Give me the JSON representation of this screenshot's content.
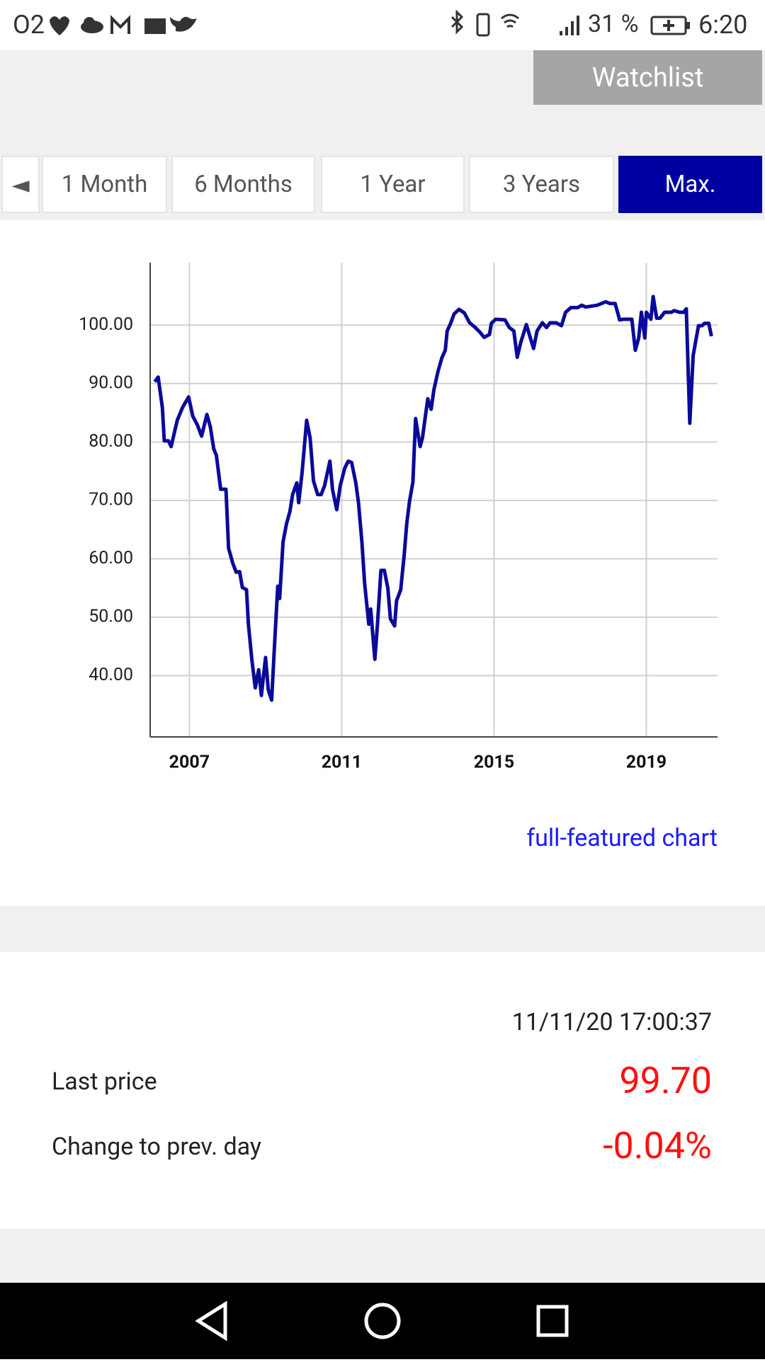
{
  "status_bar": {
    "carrier": "O2",
    "battery": "31 %",
    "time": "6:20"
  },
  "watchlist_button": "Watchlist",
  "tabs": [
    "◄",
    "1 Month",
    "6 Months",
    "1 Year",
    "3 Years",
    "Max."
  ],
  "chart_data": {
    "type": "line",
    "color": "#0a0a9a",
    "grid": true,
    "xlim": [
      2005.97,
      2020.87
    ],
    "ylim": [
      29.5,
      110.7
    ],
    "xticks": [
      2007,
      2011,
      2015,
      2019
    ],
    "yticks": [
      {
        "value": 40,
        "label": "40.00"
      },
      {
        "value": 50,
        "label": "50.00"
      },
      {
        "value": 60,
        "label": "60.00"
      },
      {
        "value": 70,
        "label": "70.00"
      },
      {
        "value": 80,
        "label": "80.00"
      },
      {
        "value": 90,
        "label": "90.00"
      },
      {
        "value": 100,
        "label": "100.00"
      }
    ],
    "x": [
      2006.09,
      2006.18,
      2006.29,
      2006.34,
      2006.45,
      2006.52,
      2006.68,
      2006.82,
      2006.98,
      2007.09,
      2007.21,
      2007.32,
      2007.46,
      2007.55,
      2007.64,
      2007.71,
      2007.82,
      2007.96,
      2008.03,
      2008.14,
      2008.23,
      2008.32,
      2008.39,
      2008.5,
      2008.55,
      2008.64,
      2008.73,
      2008.82,
      2008.89,
      2009.0,
      2009.07,
      2009.16,
      2009.23,
      2009.32,
      2009.37,
      2009.46,
      2009.55,
      2009.64,
      2009.71,
      2009.82,
      2009.87,
      2009.96,
      2010.08,
      2010.17,
      2010.26,
      2010.37,
      2010.46,
      2010.55,
      2010.69,
      2010.76,
      2010.87,
      2010.96,
      2011.08,
      2011.17,
      2011.26,
      2011.37,
      2011.44,
      2011.53,
      2011.6,
      2011.71,
      2011.76,
      2011.87,
      2011.94,
      2012.03,
      2012.12,
      2012.21,
      2012.28,
      2012.39,
      2012.44,
      2012.55,
      2012.64,
      2012.71,
      2012.78,
      2012.87,
      2012.94,
      2013.06,
      2013.12,
      2013.26,
      2013.35,
      2013.42,
      2013.53,
      2013.63,
      2013.72,
      2013.77,
      2013.86,
      2013.95,
      2014.08,
      2014.22,
      2014.36,
      2014.49,
      2014.63,
      2014.74,
      2014.88,
      2014.93,
      2015.04,
      2015.29,
      2015.4,
      2015.52,
      2015.61,
      2015.7,
      2015.85,
      2015.94,
      2016.04,
      2016.13,
      2016.27,
      2016.38,
      2016.47,
      2016.63,
      2016.77,
      2016.88,
      2017.02,
      2017.2,
      2017.3,
      2017.41,
      2017.71,
      2017.93,
      2018.05,
      2018.18,
      2018.3,
      2018.39,
      2018.62,
      2018.71,
      2018.8,
      2018.87,
      2018.96,
      2019.0,
      2019.12,
      2019.18,
      2019.27,
      2019.36,
      2019.48,
      2019.66,
      2019.73,
      2019.87,
      2019.98,
      2020.05,
      2020.14,
      2020.23,
      2020.37,
      2020.46,
      2020.53,
      2020.64,
      2020.71
    ],
    "values": [
      90.3,
      91.1,
      85.9,
      80.2,
      80.2,
      79.2,
      83.7,
      85.9,
      87.7,
      84.4,
      82.9,
      81.0,
      84.7,
      82.6,
      78.8,
      77.7,
      71.9,
      71.9,
      61.8,
      59.2,
      57.7,
      57.8,
      55.1,
      54.7,
      48.8,
      42.8,
      37.9,
      41.0,
      36.6,
      43.1,
      37.6,
      35.8,
      44.6,
      55.3,
      53.2,
      62.9,
      66.0,
      68.1,
      71.0,
      73.0,
      69.6,
      74.8,
      83.7,
      80.7,
      73.3,
      71.0,
      71.0,
      72.5,
      76.7,
      71.8,
      68.4,
      72.5,
      75.5,
      76.7,
      76.5,
      73.0,
      69.6,
      62.9,
      55.9,
      48.8,
      51.4,
      42.8,
      48.8,
      58.0,
      58.0,
      55.0,
      49.7,
      48.5,
      52.8,
      54.7,
      60.6,
      66.1,
      69.8,
      73.1,
      84.0,
      79.2,
      80.7,
      87.4,
      85.6,
      88.9,
      92.1,
      94.4,
      95.7,
      99.0,
      100.3,
      101.9,
      102.7,
      102.1,
      100.4,
      99.7,
      98.8,
      97.9,
      98.4,
      100.3,
      101.0,
      100.9,
      99.6,
      99.0,
      94.5,
      97.0,
      100.1,
      98.1,
      96.0,
      99.0,
      100.4,
      99.6,
      100.4,
      100.4,
      99.9,
      102.2,
      103.0,
      103.0,
      103.4,
      103.1,
      103.4,
      104.0,
      103.7,
      103.7,
      100.9,
      101.0,
      101.0,
      95.7,
      97.8,
      102.2,
      97.8,
      102.2,
      101.0,
      104.9,
      101.2,
      101.2,
      102.2,
      102.2,
      102.5,
      102.2,
      102.2,
      102.8,
      83.2,
      94.8,
      99.9,
      99.9,
      100.3,
      100.3,
      98.1
    ]
  },
  "link": "full-featured chart",
  "quote": {
    "timestamp": "11/11/20 17:00:37",
    "rows": [
      {
        "label": "Last price",
        "value": "99.70"
      },
      {
        "label": "Change to prev. day",
        "value": "-0.04%"
      }
    ]
  }
}
